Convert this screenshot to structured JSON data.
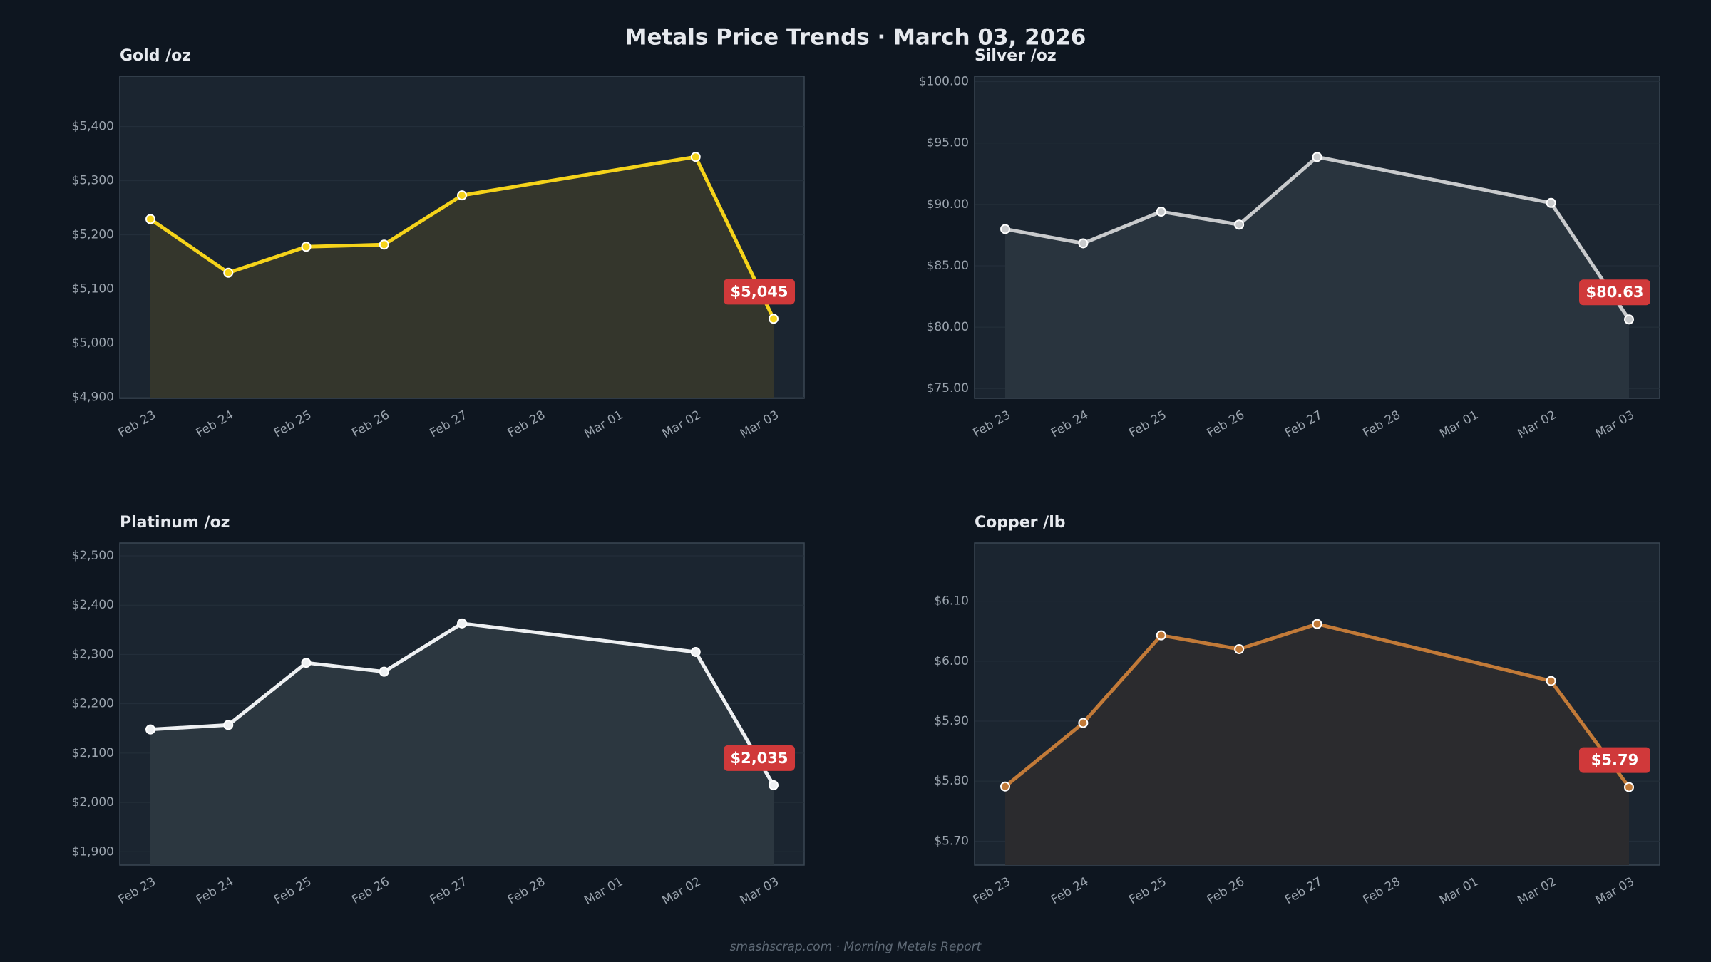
{
  "title": "Metals Price Trends  ·  March 03, 2026",
  "footer": "smashscrap.com  ·  Morning Metals Report",
  "chart_data": [
    {
      "type": "line",
      "title": "Gold  /oz",
      "xticks": [
        "Feb 23",
        "Feb 24",
        "Feb 25",
        "Feb 26",
        "Feb 27",
        "Feb 28",
        "Mar 01",
        "Mar 02",
        "Mar 03"
      ],
      "x": [
        "Feb 23",
        "Feb 24",
        "Feb 25",
        "Feb 26",
        "Feb 27",
        "Mar 02",
        "Mar 03"
      ],
      "series": [
        {
          "name": "Gold",
          "color": "#f5d31a",
          "fill": "#34362c",
          "values": [
            5229,
            5130,
            5178,
            5182,
            5273,
            5344,
            5045
          ],
          "value_labels": [
            null,
            null,
            null,
            null,
            null,
            null,
            "$5,045"
          ]
        }
      ],
      "ylim": [
        4898,
        5493
      ],
      "yticks": [
        {
          "value": 4900,
          "label": "$4,900"
        },
        {
          "value": 5000,
          "label": "$5,000"
        },
        {
          "value": 5100,
          "label": "$5,100"
        },
        {
          "value": 5200,
          "label": "$5,200"
        },
        {
          "value": 5300,
          "label": "$5,300"
        },
        {
          "value": 5400,
          "label": "$5,400"
        }
      ],
      "grid": true
    },
    {
      "type": "line",
      "title": "Silver  /oz",
      "xticks": [
        "Feb 23",
        "Feb 24",
        "Feb 25",
        "Feb 26",
        "Feb 27",
        "Feb 28",
        "Mar 01",
        "Mar 02",
        "Mar 03"
      ],
      "x": [
        "Feb 23",
        "Feb 24",
        "Feb 25",
        "Feb 26",
        "Feb 27",
        "Mar 02",
        "Mar 03"
      ],
      "series": [
        {
          "name": "Silver",
          "color": "#c8cacc",
          "fill": "#29343e",
          "values": [
            87.99,
            86.83,
            89.41,
            88.35,
            93.86,
            90.12,
            80.63
          ],
          "value_labels": [
            null,
            null,
            null,
            null,
            null,
            null,
            "$80.63"
          ]
        }
      ],
      "ylim": [
        74.2,
        100.44
      ],
      "yticks": [
        {
          "value": 75,
          "label": "$75.00"
        },
        {
          "value": 80,
          "label": "$80.00"
        },
        {
          "value": 85,
          "label": "$85.00"
        },
        {
          "value": 90,
          "label": "$90.00"
        },
        {
          "value": 95,
          "label": "$95.00"
        },
        {
          "value": 100,
          "label": "$100.00"
        }
      ],
      "grid": true
    },
    {
      "type": "line",
      "title": "Platinum  /oz",
      "xticks": [
        "Feb 23",
        "Feb 24",
        "Feb 25",
        "Feb 26",
        "Feb 27",
        "Feb 28",
        "Mar 01",
        "Mar 02",
        "Mar 03"
      ],
      "x": [
        "Feb 23",
        "Feb 24",
        "Feb 25",
        "Feb 26",
        "Feb 27",
        "Mar 02",
        "Mar 03"
      ],
      "series": [
        {
          "name": "Platinum",
          "color": "#eef0f2",
          "fill": "#2c3740",
          "values": [
            2148,
            2157,
            2283,
            2265,
            2363,
            2305,
            2035
          ],
          "value_labels": [
            null,
            null,
            null,
            null,
            null,
            null,
            "$2,035"
          ]
        }
      ],
      "ylim": [
        1873,
        2526
      ],
      "yticks": [
        {
          "value": 1900,
          "label": "$1,900"
        },
        {
          "value": 2000,
          "label": "$2,000"
        },
        {
          "value": 2100,
          "label": "$2,100"
        },
        {
          "value": 2200,
          "label": "$2,200"
        },
        {
          "value": 2300,
          "label": "$2,300"
        },
        {
          "value": 2400,
          "label": "$2,400"
        },
        {
          "value": 2500,
          "label": "$2,500"
        }
      ],
      "grid": true
    },
    {
      "type": "line",
      "title": "Copper  /lb",
      "xticks": [
        "Feb 23",
        "Feb 24",
        "Feb 25",
        "Feb 26",
        "Feb 27",
        "Feb 28",
        "Mar 01",
        "Mar 02",
        "Mar 03"
      ],
      "x": [
        "Feb 23",
        "Feb 24",
        "Feb 25",
        "Feb 26",
        "Feb 27",
        "Mar 02",
        "Mar 03"
      ],
      "series": [
        {
          "name": "Copper",
          "color": "#c27a38",
          "fill": "#2b2b2e",
          "values": [
            5.791,
            5.897,
            6.043,
            6.02,
            6.062,
            5.967,
            5.79
          ],
          "value_labels": [
            null,
            null,
            null,
            null,
            null,
            null,
            "$5.79"
          ]
        }
      ],
      "ylim": [
        5.66,
        6.197
      ],
      "yticks": [
        {
          "value": 5.7,
          "label": "$5.70"
        },
        {
          "value": 5.8,
          "label": "$5.80"
        },
        {
          "value": 5.9,
          "label": "$5.90"
        },
        {
          "value": 6,
          "label": "$6.00"
        },
        {
          "value": 6.1,
          "label": "$6.10"
        }
      ],
      "grid": true
    }
  ]
}
